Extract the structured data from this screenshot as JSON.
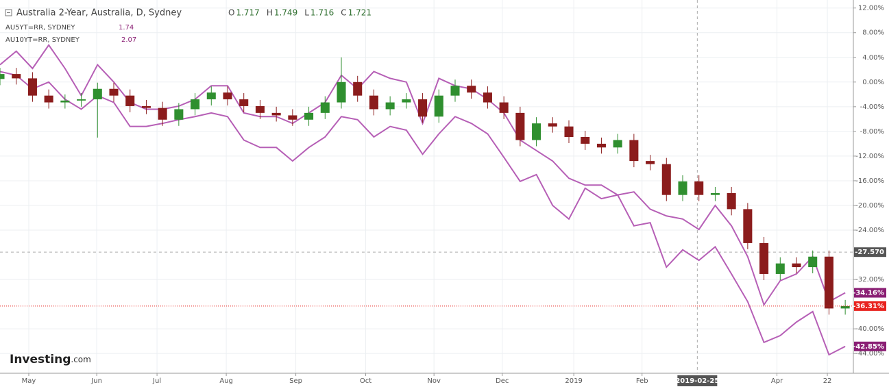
{
  "chart_data": {
    "type": "candlestick",
    "title": "Australia 2-Year, Australia, D, Sydney",
    "ohlc": [
      {
        "label": "O",
        "value": 1.717
      },
      {
        "label": "H",
        "value": 1.749
      },
      {
        "label": "L",
        "value": 1.716
      },
      {
        "label": "C",
        "value": 1.721
      }
    ],
    "x": [
      0,
      1,
      2,
      3,
      4,
      5,
      6,
      7,
      8,
      9,
      10,
      11,
      12,
      13,
      14,
      15,
      16,
      17,
      18,
      19,
      20,
      21,
      22,
      23,
      24,
      25,
      26,
      27,
      28,
      29,
      30,
      31,
      32,
      33,
      34,
      35,
      36,
      37,
      38,
      39,
      40,
      41,
      42,
      43,
      44,
      45,
      46,
      47,
      48,
      49,
      50,
      51,
      52
    ],
    "candles": {
      "open": [
        0.5,
        1.3,
        0.6,
        -2.2,
        -3.3,
        -3.0,
        -2.8,
        -1.1,
        -2.2,
        -3.9,
        -4.2,
        -6.1,
        -4.4,
        -2.8,
        -1.7,
        -2.8,
        -3.9,
        -5,
        -5.4,
        -6.1,
        -5,
        -3.3,
        0,
        -2.2,
        -4.4,
        -3.3,
        -2.8,
        -5.6,
        -2.2,
        -0.6,
        -1.7,
        -3.3,
        -5,
        -9.4,
        -6.7,
        -7.2,
        -8.9,
        -10,
        -10.6,
        -9.4,
        -12.8,
        -13.3,
        -18.3,
        -16.1,
        -18.3,
        -18.0,
        -20.6,
        -26.1,
        -31.1,
        -29.4,
        -30,
        -28.3,
        -36.7
      ],
      "high": [
        2.3,
        2.3,
        1.6,
        -1.2,
        -2.0,
        -1.8,
        -0.1,
        -0.1,
        -1.2,
        -2.9,
        -3.2,
        -3.4,
        -1.8,
        -0.7,
        -0.7,
        -1.8,
        -2.9,
        -4,
        -4.4,
        -4,
        -2.3,
        4.0,
        1,
        -1.2,
        -2.3,
        -1.8,
        -1.8,
        -1.2,
        0.4,
        0.4,
        -0.7,
        -2.3,
        -4,
        -5.7,
        -5.7,
        -6.2,
        -7.9,
        -9,
        -8.4,
        -8.4,
        -11.8,
        -12.3,
        -15.1,
        -15.1,
        -17,
        -17,
        -19.6,
        -25.1,
        -28.4,
        -28.4,
        -27.3,
        -27.3,
        -35.31
      ],
      "low": [
        -0.5,
        -0.4,
        -3.2,
        -4.3,
        -4.3,
        -4.0,
        -9.0,
        -3.2,
        -4.9,
        -5.2,
        -7.1,
        -7.1,
        -5.4,
        -3.8,
        -3.8,
        -4.9,
        -6,
        -6.4,
        -7.1,
        -7.1,
        -6,
        -4.3,
        -3.2,
        -5.4,
        -5.4,
        -4.3,
        -6.6,
        -6.6,
        -3.2,
        -2.7,
        -4.3,
        -6,
        -10.4,
        -10.4,
        -8.2,
        -9.9,
        -11,
        -11.6,
        -11.6,
        -13.8,
        -14.3,
        -19.3,
        -19.3,
        -19.3,
        -19.3,
        -21.6,
        -27.1,
        -32.1,
        -32.1,
        -31,
        -31,
        -37.7,
        -37.7
      ],
      "close": [
        1.3,
        0.6,
        -2.2,
        -3.3,
        -3.0,
        -2.8,
        -1.1,
        -2.2,
        -3.9,
        -4.2,
        -6.1,
        -4.4,
        -2.8,
        -1.7,
        -2.8,
        -3.9,
        -5,
        -5.4,
        -6.1,
        -5,
        -3.3,
        0,
        -2.2,
        -4.4,
        -3.3,
        -2.8,
        -5.6,
        -2.2,
        -0.6,
        -1.7,
        -3.3,
        -5,
        -9.4,
        -6.7,
        -7.2,
        -8.9,
        -10,
        -10.6,
        -9.4,
        -12.8,
        -13.3,
        -18.3,
        -16.1,
        -18.3,
        -18.0,
        -20.6,
        -26.1,
        -31.1,
        -29.4,
        -30,
        -28.3,
        -36.7,
        -36.31
      ],
      "up_color": "#2f8f2f",
      "down_color": "#8b1c1c",
      "last_label": "-36.31%",
      "last_color": "#e8231f"
    },
    "series": [
      {
        "name": "AU5YT=RR, SYDNEY",
        "legend_value": 1.74,
        "color": "#b65fb6",
        "tag_color": "#8a1f74",
        "last_label": "-34.16%",
        "values": [
          2.8,
          5,
          2.2,
          6.0,
          2.2,
          -2.2,
          2.8,
          0,
          -3.3,
          -4.4,
          -4.4,
          -3.9,
          -2.8,
          -0.6,
          -0.6,
          -5,
          -5.6,
          -5.6,
          -6.7,
          -5,
          -3.3,
          1.1,
          -1.1,
          1.7,
          0.6,
          0,
          -6.7,
          0.6,
          -0.6,
          -1.1,
          -2.8,
          -5,
          -9.4,
          -11.1,
          -12.8,
          -15.6,
          -16.7,
          -16.7,
          -18.3,
          -17.8,
          -20.6,
          -21.7,
          -22.2,
          -23.9,
          -20,
          -23.3,
          -28.3,
          -36.1,
          -32.2,
          -31.1,
          -28.3,
          -35.6,
          -34.16
        ]
      },
      {
        "name": "AU10YT=RR, SYDNEY",
        "legend_value": 2.07,
        "color": "#b65fb6",
        "tag_color": "#8a1f74",
        "last_label": "-42.85%",
        "values": [
          1.7,
          1.1,
          -1.1,
          0,
          -2.8,
          -4.4,
          -2.2,
          -3.3,
          -7.2,
          -7.2,
          -6.7,
          -6.1,
          -5.6,
          -5,
          -5.6,
          -9.4,
          -10.6,
          -10.6,
          -12.8,
          -10.6,
          -8.9,
          -5.6,
          -6.1,
          -8.9,
          -7.2,
          -7.8,
          -11.7,
          -8.4,
          -5.6,
          -6.7,
          -8.4,
          -12.2,
          -16.1,
          -15,
          -20,
          -22.2,
          -17.2,
          -18.9,
          -18.3,
          -23.3,
          -22.8,
          -30,
          -27.2,
          -28.9,
          -26.7,
          -31.1,
          -35.6,
          -42.2,
          -41.1,
          -38.9,
          -37.2,
          -44.2,
          -42.85
        ]
      }
    ],
    "xlim": [
      0,
      52.5
    ],
    "ylim": [
      -47.2,
      13.3
    ],
    "yticks": [
      {
        "value": 12,
        "label": "12.00%"
      },
      {
        "value": 8,
        "label": "8.00%"
      },
      {
        "value": 4,
        "label": "4.00%"
      },
      {
        "value": 0,
        "label": "0.00%"
      },
      {
        "value": -4,
        "label": "-4.00%"
      },
      {
        "value": -8,
        "label": "-8.00%"
      },
      {
        "value": -12,
        "label": "-12.00%"
      },
      {
        "value": -16,
        "label": "-16.00%"
      },
      {
        "value": -20,
        "label": "-20.00%"
      },
      {
        "value": -24,
        "label": "-24.00%"
      },
      {
        "value": -32,
        "label": "-32.00%"
      },
      {
        "value": -40,
        "label": "-40.00%"
      },
      {
        "value": -44,
        "label": "-44.00%"
      }
    ],
    "xticks": [
      {
        "value": 1.77,
        "label": "May"
      },
      {
        "value": 5.95,
        "label": "Jun"
      },
      {
        "value": 9.66,
        "label": "Jul"
      },
      {
        "value": 13.92,
        "label": "Aug"
      },
      {
        "value": 18.2,
        "label": "Sep"
      },
      {
        "value": 22.5,
        "label": "Oct"
      },
      {
        "value": 26.7,
        "label": "Nov"
      },
      {
        "value": 30.9,
        "label": "Dec"
      },
      {
        "value": 35.3,
        "label": "2019"
      },
      {
        "value": 39.5,
        "label": "Feb"
      },
      {
        "value": 47.8,
        "label": "Apr"
      },
      {
        "value": 50.9,
        "label": "22"
      }
    ],
    "crosshair": {
      "x_value": 42.9,
      "x_label": "2019-02-25",
      "y_value": -27.57,
      "y_label": "-27.570"
    },
    "grid": true,
    "logo": "Investing",
    "logo_suffix": ".com"
  }
}
